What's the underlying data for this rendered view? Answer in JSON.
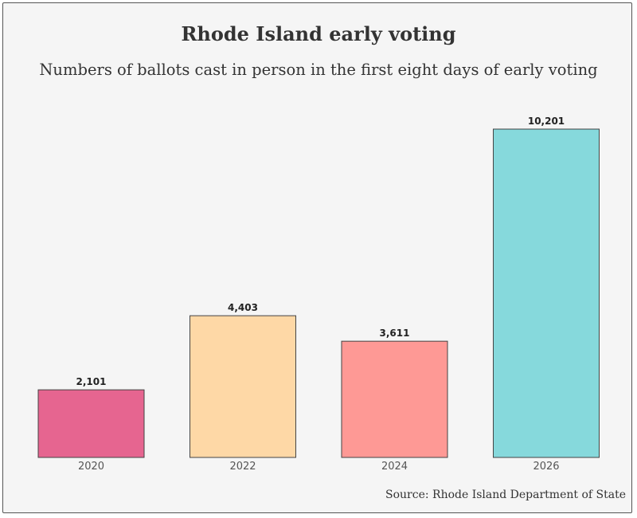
{
  "chart_data": {
    "type": "bar",
    "title": "Rhode Island early voting",
    "subtitle": "Numbers of ballots cast in person in the first eight days of early voting",
    "categories": [
      "2020",
      "2022",
      "2024",
      "2026"
    ],
    "values": [
      2101,
      4403,
      3611,
      10201
    ],
    "value_labels": [
      "2,101",
      "4,403",
      "3,611",
      "10,201"
    ],
    "colors": [
      "#e66590",
      "#fed8a6",
      "#fe9995",
      "#86d9dc"
    ],
    "xlabel": "",
    "ylabel": "",
    "ylim": [
      0,
      10201
    ],
    "grid": false,
    "legend": "none"
  },
  "source": "Source: Rhode Island Department of State"
}
